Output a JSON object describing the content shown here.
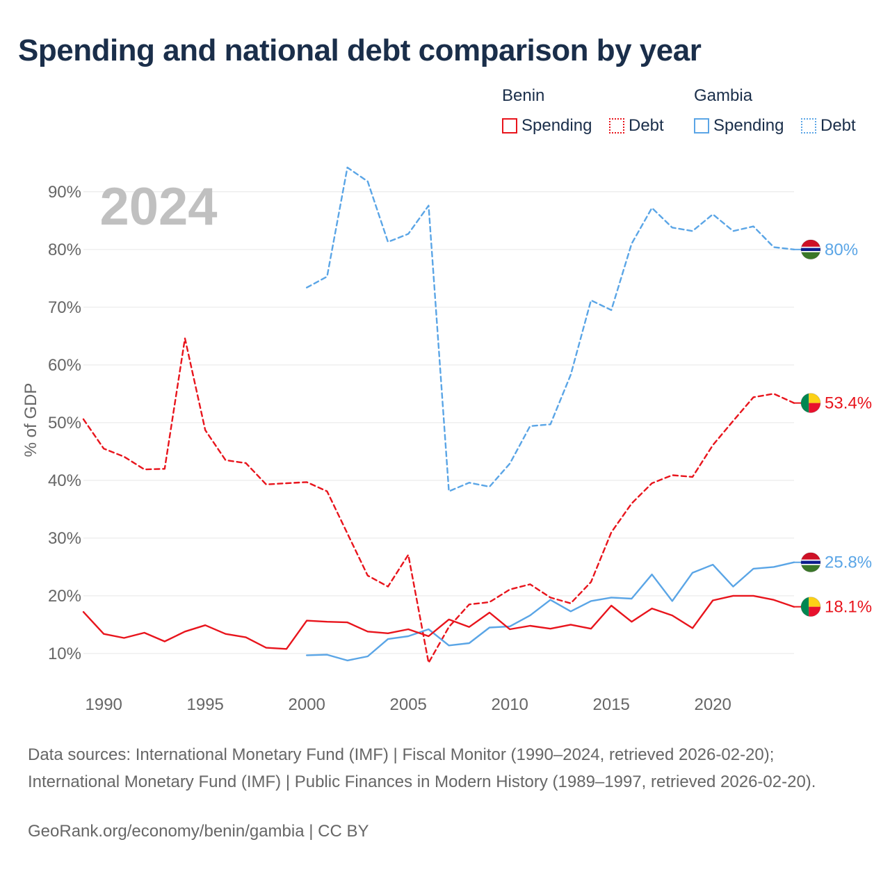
{
  "title": "Spending and national debt comparison by year",
  "legend": {
    "groups": [
      {
        "name": "Benin",
        "color": "#e8141c",
        "items": [
          {
            "label": "Spending",
            "style": "solid"
          },
          {
            "label": "Debt",
            "style": "dotted"
          }
        ]
      },
      {
        "name": "Gambia",
        "color": "#5aa5e6",
        "items": [
          {
            "label": "Spending",
            "style": "solid"
          },
          {
            "label": "Debt",
            "style": "dotted"
          }
        ]
      }
    ]
  },
  "chart_data": {
    "type": "line",
    "title": "Spending and national debt comparison by year",
    "watermark_year": "2024",
    "ylabel": "% of GDP",
    "xlabel": "",
    "xlim": [
      1989,
      2024
    ],
    "ylim": [
      3,
      96
    ],
    "x_ticks": [
      1990,
      1995,
      2000,
      2005,
      2010,
      2015,
      2020
    ],
    "y_ticks": [
      10,
      20,
      30,
      40,
      50,
      60,
      70,
      80,
      90
    ],
    "y_tick_labels": [
      "10%",
      "20%",
      "30%",
      "40%",
      "50%",
      "60%",
      "70%",
      "80%",
      "90%"
    ],
    "series": [
      {
        "name": "Gambia Debt",
        "country": "Gambia",
        "metric": "Debt",
        "color": "#5aa5e6",
        "dash": "dashed",
        "end_label": "80%",
        "x": [
          2000,
          2001,
          2002,
          2003,
          2004,
          2005,
          2006,
          2007,
          2008,
          2009,
          2010,
          2011,
          2012,
          2013,
          2014,
          2015,
          2016,
          2017,
          2018,
          2019,
          2020,
          2021,
          2022,
          2023,
          2024
        ],
        "values": [
          73.4,
          75.3,
          94.2,
          91.8,
          81.3,
          82.7,
          87.6,
          38.1,
          39.6,
          38.9,
          42.9,
          49.4,
          49.7,
          58.3,
          71.2,
          69.5,
          81.0,
          87.2,
          83.8,
          83.2,
          86.1,
          83.2,
          84.0,
          80.4,
          80.0
        ]
      },
      {
        "name": "Benin Debt",
        "country": "Benin",
        "metric": "Debt",
        "color": "#e8141c",
        "dash": "dashed",
        "end_label": "53.4%",
        "x": [
          1989,
          1990,
          1991,
          1992,
          1993,
          1994,
          1995,
          1996,
          1997,
          1998,
          1999,
          2000,
          2001,
          2002,
          2003,
          2004,
          2005,
          2006,
          2007,
          2008,
          2009,
          2010,
          2011,
          2012,
          2013,
          2014,
          2015,
          2016,
          2017,
          2018,
          2019,
          2020,
          2021,
          2022,
          2023,
          2024
        ],
        "values": [
          50.6,
          45.5,
          44.1,
          41.9,
          42.0,
          64.6,
          48.7,
          43.5,
          43.0,
          39.3,
          39.5,
          39.7,
          38.1,
          30.8,
          23.5,
          21.6,
          27.1,
          8.4,
          14.6,
          18.5,
          18.9,
          21.1,
          22.0,
          19.7,
          18.7,
          22.4,
          31.0,
          36.0,
          39.5,
          40.9,
          40.6,
          46.1,
          50.3,
          54.4,
          55.0,
          53.4
        ]
      },
      {
        "name": "Gambia Spending",
        "country": "Gambia",
        "metric": "Spending",
        "color": "#5aa5e6",
        "dash": "solid",
        "end_label": "25.8%",
        "x": [
          2000,
          2001,
          2002,
          2003,
          2004,
          2005,
          2006,
          2007,
          2008,
          2009,
          2010,
          2011,
          2012,
          2013,
          2014,
          2015,
          2016,
          2017,
          2018,
          2019,
          2020,
          2021,
          2022,
          2023,
          2024
        ],
        "values": [
          9.7,
          9.8,
          8.8,
          9.5,
          12.5,
          13.0,
          14.2,
          11.4,
          11.8,
          14.5,
          14.7,
          16.6,
          19.3,
          17.3,
          19.1,
          19.7,
          19.5,
          23.7,
          19.1,
          24.0,
          25.4,
          21.6,
          24.7,
          25.0,
          25.8
        ]
      },
      {
        "name": "Benin Spending",
        "country": "Benin",
        "metric": "Spending",
        "color": "#e8141c",
        "dash": "solid",
        "end_label": "18.1%",
        "x": [
          1989,
          1990,
          1991,
          1992,
          1993,
          1994,
          1995,
          1996,
          1997,
          1998,
          1999,
          2000,
          2001,
          2002,
          2003,
          2004,
          2005,
          2006,
          2007,
          2008,
          2009,
          2010,
          2011,
          2012,
          2013,
          2014,
          2015,
          2016,
          2017,
          2018,
          2019,
          2020,
          2021,
          2022,
          2023,
          2024
        ],
        "values": [
          17.2,
          13.4,
          12.7,
          13.6,
          12.1,
          13.8,
          14.9,
          13.4,
          12.8,
          11.0,
          10.8,
          15.7,
          15.5,
          15.4,
          13.8,
          13.5,
          14.2,
          13.0,
          15.9,
          14.6,
          17.1,
          14.2,
          14.8,
          14.3,
          15.0,
          14.3,
          18.3,
          15.5,
          17.8,
          16.6,
          14.4,
          19.2,
          20.0,
          20.0,
          19.3,
          18.1
        ]
      }
    ]
  },
  "sources": "Data sources: International Monetary Fund (IMF) | Fiscal Monitor (1990–2024, retrieved 2026-02-20); International Monetary Fund (IMF) | Public Finances in Modern History (1989–1997, retrieved 2026-02-20).",
  "credit": "GeoRank.org/economy/benin/gambia | CC BY",
  "colors": {
    "title": "#1a2e4a",
    "benin": "#e8141c",
    "gambia": "#5aa5e6",
    "grid": "#e6e6e6",
    "axis_text": "#666666",
    "watermark": "#c0c0c0"
  }
}
